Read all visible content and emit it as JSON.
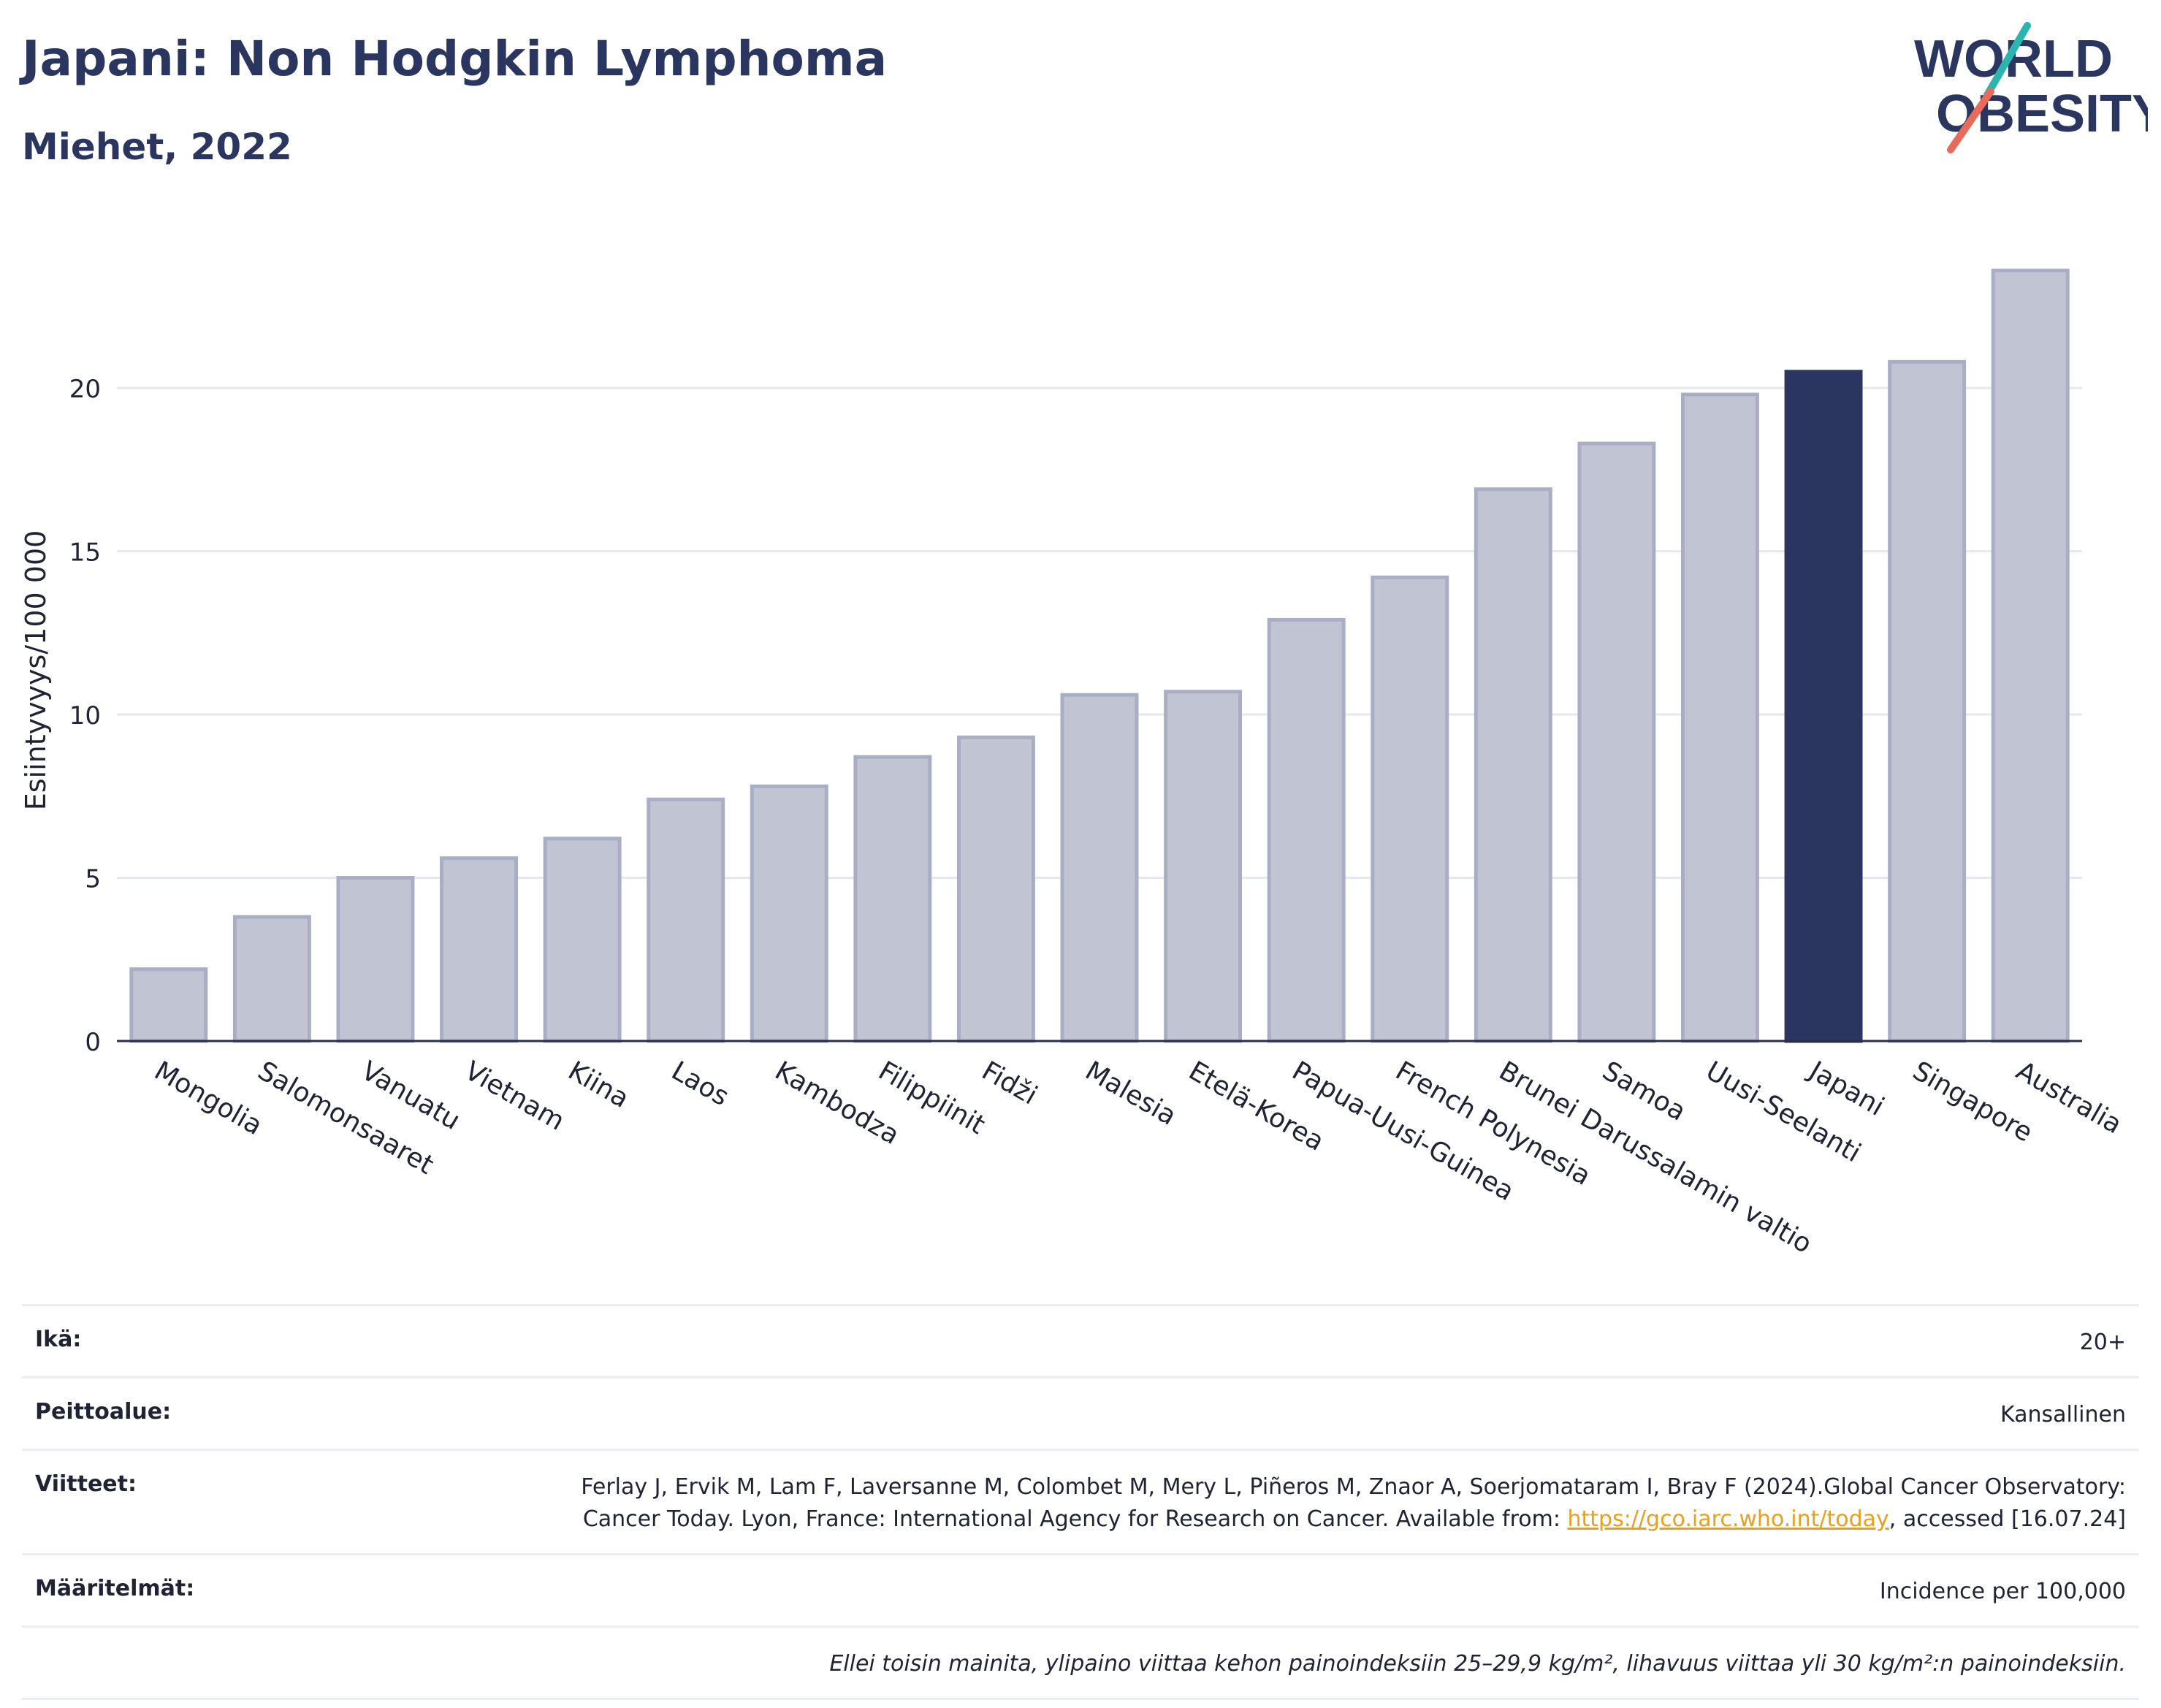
{
  "header": {
    "title": "Japani: Non Hodgkin Lymphoma",
    "subtitle": "Miehet, 2022"
  },
  "logo": {
    "line1": "WORLD",
    "line2": "OBESITY",
    "colors": [
      "#2b3660",
      "#2bb5b0",
      "#e86a5a"
    ]
  },
  "chart_data": {
    "type": "bar",
    "ylabel": "Esiintyvyys/100 000",
    "ylim": [
      0,
      24.5
    ],
    "yticks": [
      0,
      5,
      10,
      15,
      20
    ],
    "grid": true,
    "highlight": "Japani",
    "bar_color": "#c1c4d2",
    "bar_edge_color": "#a9aec4",
    "highlight_color": "#2b3660",
    "categories": [
      "Mongolia",
      "Salomonsaaret",
      "Vanuatu",
      "Vietnam",
      "Kiina",
      "Laos",
      "Kambodza",
      "Filippiinit",
      "Fidži",
      "Malesia",
      "Etelä-Korea",
      "Papua-Uusi-Guinea",
      "French Polynesia",
      "Brunei Darussalamin valtio",
      "Samoa",
      "Uusi-Seelanti",
      "Japani",
      "Singapore",
      "Australia"
    ],
    "values": [
      2.2,
      3.8,
      5.0,
      5.6,
      6.2,
      7.4,
      7.8,
      8.7,
      9.3,
      10.6,
      10.7,
      12.9,
      14.2,
      16.9,
      18.3,
      19.8,
      20.5,
      20.8,
      23.6
    ]
  },
  "info": {
    "age_label": "Ikä:",
    "age_value": "20+",
    "coverage_label": "Peittoalue:",
    "coverage_value": "Kansallinen",
    "refs_label": "Viitteet:",
    "refs_text_1": "Ferlay J, Ervik M, Lam F, Laversanne M, Colombet M, Mery L, Piñeros M, Znaor A, Soerjomataram I, Bray F (2024).Global Cancer Observatory: Cancer Today. Lyon, France: International Agency for Research on Cancer. Available from: ",
    "refs_link": "https://gco.iarc.who.int/today",
    "refs_text_2": ", accessed [16.07.24]",
    "defs_label": "Määritelmät:",
    "defs_value": "Incidence per 100,000",
    "note": "Ellei toisin mainita, ylipaino viittaa kehon painoindeksiin 25–29,9 kg/m², lihavuus viittaa yli 30 kg/m²:n painoindeksiin."
  }
}
